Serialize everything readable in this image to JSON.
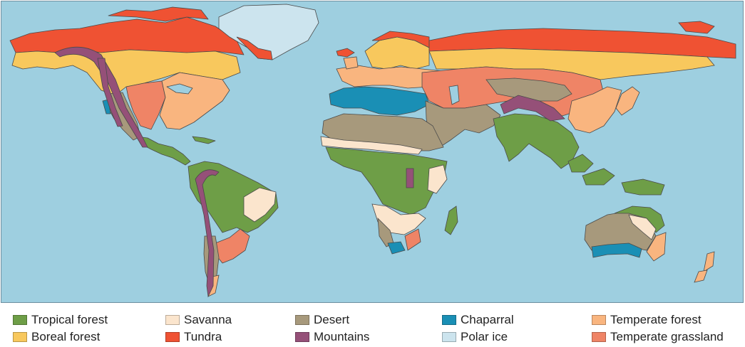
{
  "map": {
    "ocean_color": "#9ecfe0",
    "outline_color": "#4a4a4a"
  },
  "legend": [
    {
      "id": "tropical-forest",
      "label": "Tropical forest",
      "color": "#6e9e47"
    },
    {
      "id": "savanna",
      "label": "Savanna",
      "color": "#fbe5cd"
    },
    {
      "id": "desert",
      "label": "Desert",
      "color": "#a7997c"
    },
    {
      "id": "chaparral",
      "label": "Chaparral",
      "color": "#1a8fb5"
    },
    {
      "id": "temperate-forest",
      "label": "Temperate forest",
      "color": "#f9b57f"
    },
    {
      "id": "boreal-forest",
      "label": "Boreal forest",
      "color": "#f8c85d"
    },
    {
      "id": "tundra",
      "label": "Tundra",
      "color": "#ef5233"
    },
    {
      "id": "mountains",
      "label": "Mountains",
      "color": "#955078"
    },
    {
      "id": "polar-ice",
      "label": "Polar ice",
      "color": "#cce4ee"
    },
    {
      "id": "temperate-grassland",
      "label": "Temperate grassland",
      "color": "#ef8466"
    }
  ]
}
